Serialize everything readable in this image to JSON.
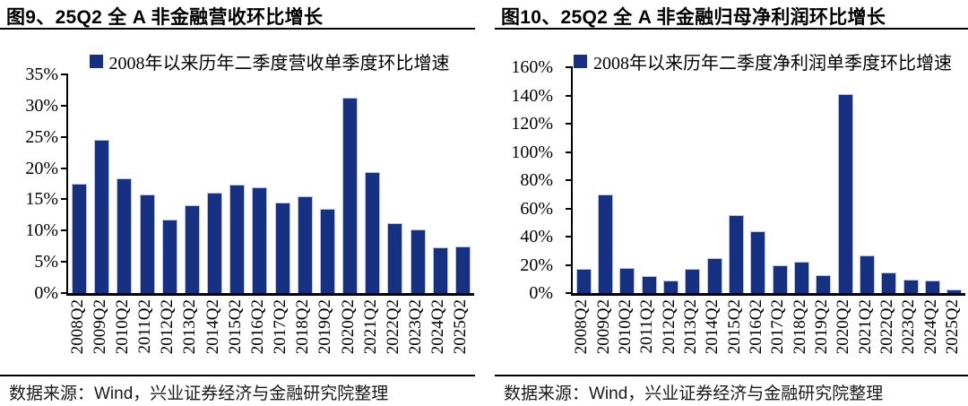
{
  "accent_color": "#163082",
  "panels": [
    {
      "title": "图9、25Q2 全 A 非金融营收环比增长",
      "source": "数据来源：Wind，兴业证券经济与金融研究院整理"
    },
    {
      "title": "图10、25Q2 全 A 非金融归母净利润环比增长",
      "source": "数据来源：Wind，兴业证券经济与金融研究院整理"
    }
  ],
  "chart_data": [
    {
      "type": "bar",
      "title": "图9、25Q2 全 A 非金融营收环比增长",
      "legend": [
        "2008年以来历年二季度营收单季度环比增速"
      ],
      "legend_position": "top-center",
      "categories": [
        "2008Q2",
        "2009Q2",
        "2010Q2",
        "2011Q2",
        "2012Q2",
        "2013Q2",
        "2014Q2",
        "2015Q2",
        "2016Q2",
        "2017Q2",
        "2018Q2",
        "2019Q2",
        "2020Q2",
        "2021Q2",
        "2022Q2",
        "2023Q2",
        "2024Q2",
        "2025Q2"
      ],
      "values": [
        17.5,
        24.5,
        18.3,
        15.8,
        11.8,
        14.1,
        16.1,
        17.4,
        16.9,
        14.5,
        15.5,
        13.5,
        31.3,
        19.4,
        11.2,
        10.2,
        7.3,
        7.5
      ],
      "xlabel": "",
      "ylabel": "",
      "ylim": [
        0,
        35
      ],
      "ytick_step": 5,
      "ytick_format": "percent",
      "grid": false,
      "bar_color": "#163082"
    },
    {
      "type": "bar",
      "title": "图10、25Q2 全 A 非金融归母净利润环比增长",
      "legend": [
        "2008年以来历年二季度净利润单季度环比增速"
      ],
      "legend_position": "top-center",
      "categories": [
        "2008Q2",
        "2009Q2",
        "2010Q2",
        "2011Q2",
        "2012Q2",
        "2013Q2",
        "2014Q2",
        "2015Q2",
        "2016Q2",
        "2017Q2",
        "2018Q2",
        "2019Q2",
        "2020Q2",
        "2021Q2",
        "2022Q2",
        "2023Q2",
        "2024Q2",
        "2025Q2"
      ],
      "values": [
        17,
        70,
        18,
        12,
        9,
        17,
        24.5,
        55,
        44,
        20,
        22,
        12.5,
        141,
        27,
        14.5,
        9.5,
        9,
        2.5
      ],
      "xlabel": "",
      "ylabel": "",
      "ylim": [
        0,
        160
      ],
      "ytick_step": 20,
      "ytick_format": "percent",
      "grid": false,
      "bar_color": "#163082"
    }
  ]
}
